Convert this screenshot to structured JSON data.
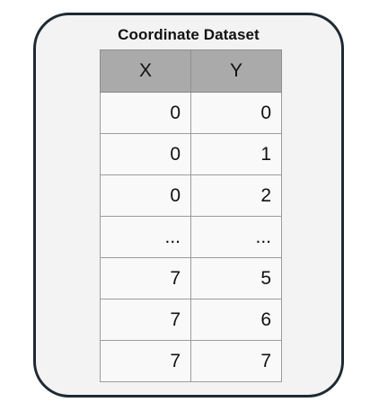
{
  "title": "Coordinate Dataset",
  "columns": [
    "X",
    "Y"
  ],
  "rows": [
    [
      "0",
      "0"
    ],
    [
      "0",
      "1"
    ],
    [
      "0",
      "2"
    ],
    [
      "...",
      "..."
    ],
    [
      "7",
      "5"
    ],
    [
      "7",
      "6"
    ],
    [
      "7",
      "7"
    ]
  ],
  "colors": {
    "border": "#1f2a33",
    "card_background": "#f3f3f3",
    "header_background": "#aaaaaa"
  }
}
